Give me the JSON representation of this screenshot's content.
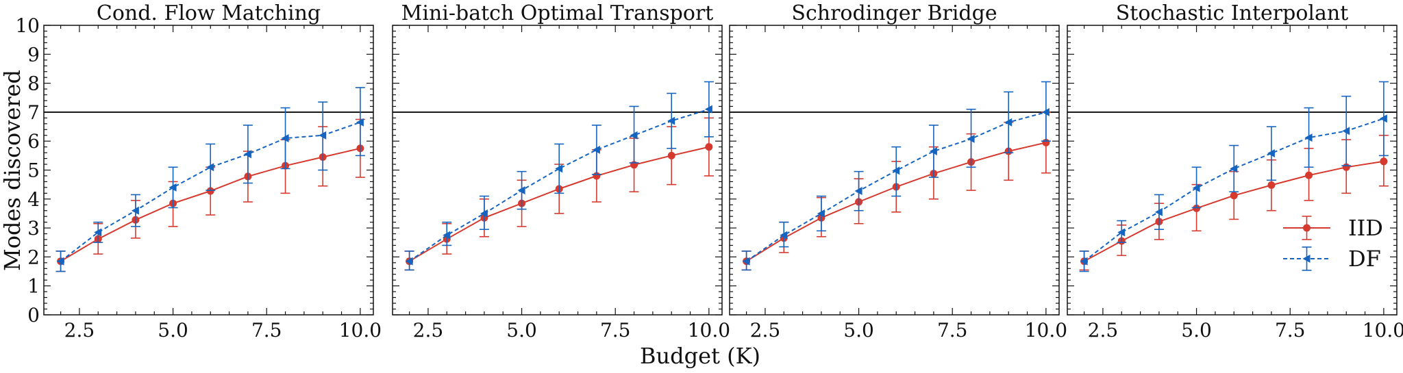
{
  "chart_data": {
    "type": "line",
    "ylabel": "Modes discovered",
    "xlabel": "Budget (K)",
    "ylim": [
      0,
      10
    ],
    "xlim": [
      1.55,
      10.35
    ],
    "yticks": [
      "0",
      "1",
      "2",
      "3",
      "4",
      "5",
      "6",
      "7",
      "8",
      "9",
      "10"
    ],
    "xticks": [
      "2.5",
      "5.0",
      "7.5",
      "10.0"
    ],
    "reference_line": 7,
    "grid": false,
    "legend_placement": "lower-right of last panel",
    "colors": {
      "IID": "#d63a2e",
      "DF": "#1565c0",
      "reference": "#111111"
    },
    "x": [
      2,
      3,
      4,
      5,
      6,
      7,
      8,
      9,
      10
    ],
    "panels": [
      {
        "title": "Cond. Flow Matching",
        "series": [
          {
            "name": "IID",
            "values": [
              1.85,
              2.62,
              3.28,
              3.85,
              4.28,
              4.78,
              5.15,
              5.45,
              5.75
            ],
            "err_low": [
              1.5,
              2.1,
              2.65,
              3.05,
              3.45,
              3.9,
              4.2,
              4.45,
              4.75
            ],
            "err_high": [
              2.2,
              3.15,
              3.95,
              4.6,
              5.1,
              5.65,
              6.05,
              6.5,
              6.75
            ]
          },
          {
            "name": "DF",
            "values": [
              1.85,
              2.85,
              3.6,
              4.4,
              5.1,
              5.55,
              6.1,
              6.2,
              6.65
            ],
            "err_low": [
              1.5,
              2.5,
              3.05,
              3.7,
              4.3,
              4.55,
              5.05,
              5.0,
              5.5
            ],
            "err_high": [
              2.2,
              3.2,
              4.15,
              5.1,
              5.9,
              6.55,
              7.15,
              7.35,
              7.85
            ]
          }
        ]
      },
      {
        "title": "Mini-batch Optimal Transport",
        "series": [
          {
            "name": "IID",
            "values": [
              1.85,
              2.62,
              3.35,
              3.85,
              4.35,
              4.8,
              5.18,
              5.5,
              5.8
            ],
            "err_low": [
              1.55,
              2.1,
              2.7,
              3.05,
              3.5,
              3.9,
              4.25,
              4.5,
              4.8
            ],
            "err_high": [
              2.2,
              3.15,
              4.0,
              4.65,
              5.2,
              5.7,
              6.1,
              6.5,
              6.8
            ]
          },
          {
            "name": "DF",
            "values": [
              1.85,
              2.75,
              3.5,
              4.3,
              5.05,
              5.7,
              6.2,
              6.7,
              7.1
            ],
            "err_low": [
              1.55,
              2.4,
              2.95,
              3.65,
              4.2,
              4.85,
              5.25,
              5.75,
              6.15
            ],
            "err_high": [
              2.2,
              3.2,
              4.1,
              4.95,
              5.9,
              6.55,
              7.2,
              7.65,
              8.05
            ]
          }
        ]
      },
      {
        "title": "Schrodinger Bridge",
        "series": [
          {
            "name": "IID",
            "values": [
              1.85,
              2.65,
              3.35,
              3.9,
              4.42,
              4.88,
              5.28,
              5.65,
              5.95
            ],
            "err_low": [
              1.55,
              2.15,
              2.7,
              3.15,
              3.55,
              4.0,
              4.3,
              4.65,
              4.9
            ],
            "err_high": [
              2.2,
              3.2,
              4.05,
              4.7,
              5.3,
              5.8,
              6.25,
              6.65,
              7.0
            ]
          },
          {
            "name": "DF",
            "values": [
              1.85,
              2.75,
              3.5,
              4.28,
              4.98,
              5.65,
              6.08,
              6.65,
              7.0
            ],
            "err_low": [
              1.55,
              2.35,
              2.9,
              3.6,
              4.1,
              4.75,
              5.1,
              5.6,
              6.0
            ],
            "err_high": [
              2.2,
              3.2,
              4.1,
              4.95,
              5.8,
              6.55,
              7.1,
              7.7,
              8.05
            ]
          }
        ]
      },
      {
        "title": "Stochastic Interpolant",
        "series": [
          {
            "name": "IID",
            "values": [
              1.85,
              2.55,
              3.22,
              3.68,
              4.12,
              4.48,
              4.82,
              5.1,
              5.3
            ],
            "err_low": [
              1.55,
              2.05,
              2.6,
              2.9,
              3.3,
              3.6,
              3.95,
              4.2,
              4.45
            ],
            "err_high": [
              2.2,
              3.1,
              3.85,
              4.5,
              4.95,
              5.35,
              5.75,
              6.05,
              6.2
            ]
          },
          {
            "name": "DF",
            "values": [
              1.85,
              2.85,
              3.55,
              4.38,
              5.05,
              5.58,
              6.12,
              6.35,
              6.78
            ],
            "err_low": [
              1.5,
              2.5,
              2.95,
              3.7,
              4.25,
              4.65,
              5.1,
              5.15,
              5.5
            ],
            "err_high": [
              2.2,
              3.25,
              4.15,
              5.1,
              5.85,
              6.5,
              7.15,
              7.55,
              8.05
            ]
          }
        ]
      }
    ]
  }
}
